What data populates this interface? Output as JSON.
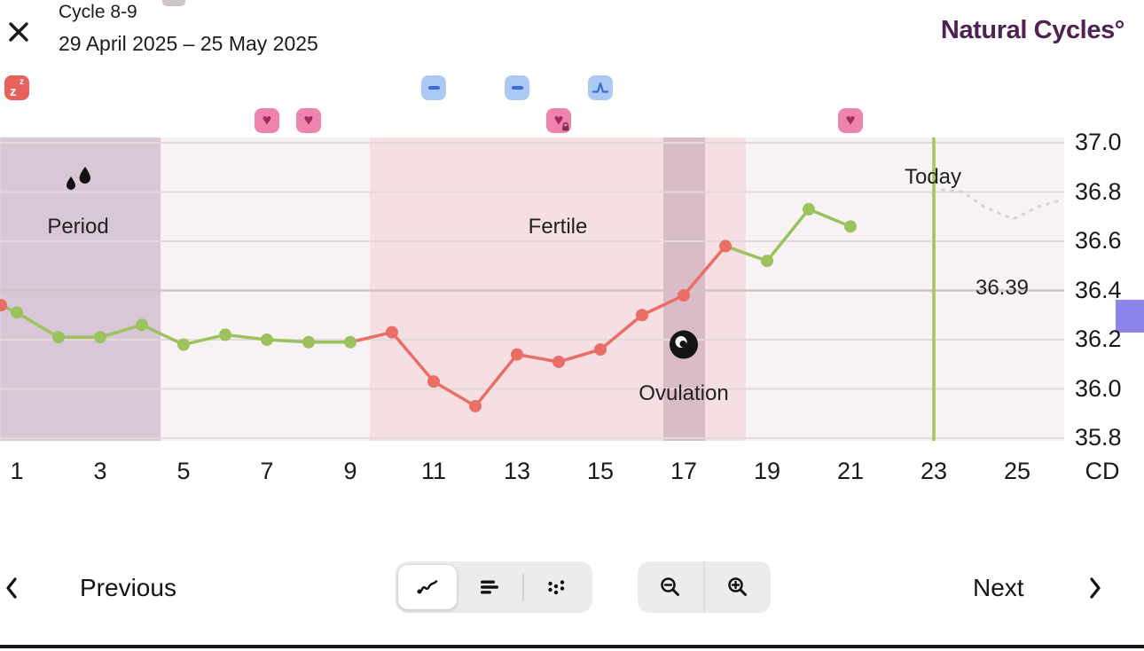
{
  "header": {
    "close_icon": "✕",
    "title": "Cycle 8-9",
    "date_range": "29 April 2025 – 25 May 2025",
    "logo": "Natural Cycles°",
    "logo_color": "#4f2252"
  },
  "chart_data": {
    "type": "line",
    "x_axis": {
      "tick_days": [
        1,
        3,
        5,
        7,
        9,
        11,
        13,
        15,
        17,
        19,
        21,
        23,
        25
      ],
      "ticks": [
        "1",
        "3",
        "5",
        "7",
        "9",
        "11",
        "13",
        "15",
        "17",
        "19",
        "21",
        "23",
        "25"
      ],
      "unit_label": "CD"
    },
    "y_axis": {
      "ticks": [
        "37.0",
        "36.8",
        "36.6",
        "36.4",
        "36.2",
        "36.0",
        "35.8"
      ],
      "values": [
        37.0,
        36.8,
        36.6,
        36.4,
        36.2,
        36.0,
        35.8
      ],
      "emphasis": 36.4
    },
    "temperatures": {
      "days": [
        1,
        2,
        3,
        4,
        5,
        6,
        7,
        8,
        9,
        10,
        11,
        12,
        13,
        14,
        15,
        16,
        17,
        18,
        19,
        20,
        21
      ],
      "values": [
        36.31,
        36.21,
        36.21,
        36.26,
        36.18,
        36.22,
        36.2,
        36.19,
        36.19,
        36.23,
        36.03,
        35.93,
        36.14,
        36.11,
        36.16,
        36.3,
        36.38,
        36.58,
        36.52,
        36.73,
        36.66
      ],
      "phases": [
        "green",
        "green",
        "green",
        "green",
        "green",
        "green",
        "green",
        "green",
        "green",
        "red",
        "red",
        "red",
        "red",
        "red",
        "red",
        "red",
        "red",
        "red",
        "green",
        "green",
        "green"
      ]
    },
    "lead_in": {
      "day": 0.62,
      "temp": 36.34,
      "point_color": "red"
    },
    "prediction_points": [
      [
        23.2,
        36.81
      ],
      [
        23.7,
        36.8
      ],
      [
        24.2,
        36.74
      ],
      [
        24.9,
        36.69
      ],
      [
        25.5,
        36.74
      ],
      [
        26.1,
        36.77
      ]
    ],
    "today": {
      "day": 23,
      "label": "Today"
    },
    "current_reading": "36.39",
    "ovulation_icon": {
      "day": 17,
      "temp": 36.18
    },
    "regions": [
      {
        "name": "period",
        "label": "Period",
        "start_day": 0.6,
        "end_day": 4.45
      },
      {
        "name": "fertile",
        "label": "Fertile",
        "start_day": 9.47,
        "end_day": 18.49
      },
      {
        "name": "ovulation",
        "label": "Ovulation",
        "start_day": 16.51,
        "end_day": 17.51
      }
    ],
    "labels": {
      "period": "Period",
      "fertile": "Fertile",
      "ovulation": "Ovulation"
    },
    "colors": {
      "line_green": "#9cc25d",
      "line_red": "#e96e66",
      "today_line": "#a7c556",
      "prediction": "#d9d2d5",
      "grid": "#e3d8da",
      "grid_emphasis": "#d2c2c4",
      "plot_bg": "#f7f3f5",
      "period_bg": "#d9c7d7",
      "fertile_bg": "#f6dfe3",
      "ovulation_bg": "#dabbc8",
      "scroll_indicator": "#8d85ea"
    }
  },
  "icons": [
    {
      "day": 1,
      "kind": "sleep",
      "row": "top",
      "name": "sleep-icon"
    },
    {
      "day": 7,
      "kind": "heart",
      "row": "bottom",
      "name": "intercourse-icon"
    },
    {
      "day": 8,
      "kind": "heart",
      "row": "bottom",
      "name": "intercourse-icon"
    },
    {
      "day": 11,
      "kind": "dash",
      "row": "top",
      "name": "excluded-temperature-icon"
    },
    {
      "day": 13,
      "kind": "dash",
      "row": "top",
      "name": "excluded-temperature-icon"
    },
    {
      "day": 14,
      "kind": "heart-lock",
      "row": "bottom",
      "name": "protected-intercourse-icon"
    },
    {
      "day": 15,
      "kind": "lh",
      "row": "top",
      "name": "lh-test-icon"
    },
    {
      "day": 21,
      "kind": "heart",
      "row": "bottom",
      "name": "intercourse-icon"
    }
  ],
  "icon_colors": {
    "sleep_bg": "#e7625c",
    "heart_bg": "#ee84ad",
    "heart_glyph": "#a62960",
    "blue_bg": "#abc9f3",
    "blue_glyph": "#3d6bd7"
  },
  "footer": {
    "previous_label": "Previous",
    "next_label": "Next",
    "view_modes": [
      "line-chart-view",
      "list-view",
      "scatter-view"
    ],
    "selected_view": "line-chart-view",
    "zoom_controls": [
      "zoom-out",
      "zoom-in"
    ]
  }
}
